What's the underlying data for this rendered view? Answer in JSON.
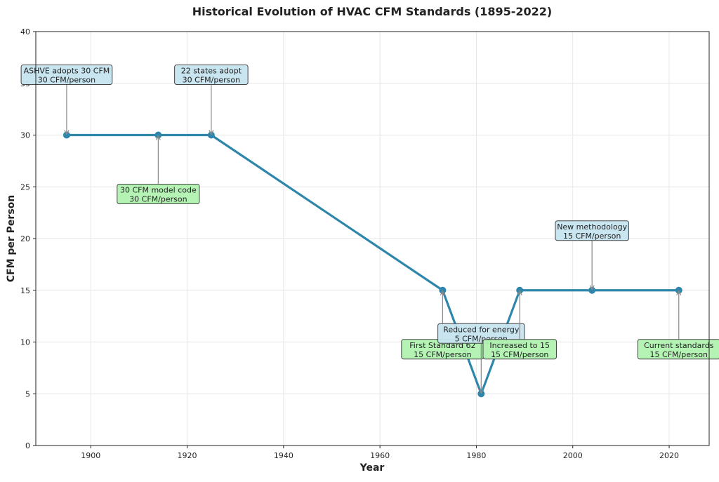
{
  "chart_data": {
    "type": "line",
    "title": "Historical Evolution of HVAC CFM Standards (1895-2022)",
    "xlabel": "Year",
    "ylabel": "CFM per Person",
    "xlim": [
      1888.6,
      2028.3
    ],
    "ylim": [
      0,
      40
    ],
    "xticks": [
      1900,
      1920,
      1940,
      1960,
      1980,
      2000,
      2020
    ],
    "yticks": [
      0,
      5,
      10,
      15,
      20,
      25,
      30,
      35,
      40
    ],
    "grid": true,
    "series": [
      {
        "name": "CFM per Person",
        "color": "#2e86ab",
        "x": [
          1895,
          1914,
          1925,
          1973,
          1981,
          1989,
          2004,
          2022
        ],
        "y": [
          30,
          30,
          30,
          15,
          5,
          15,
          15,
          15
        ]
      }
    ],
    "annotations": [
      {
        "x": 1895,
        "y": 30,
        "line1": "ASHVE adopts 30 CFM",
        "line2": "30 CFM/person",
        "box": "blue"
      },
      {
        "x": 1914,
        "y": 30,
        "line1": "30 CFM model code",
        "line2": "30 CFM/person",
        "box": "green"
      },
      {
        "x": 1925,
        "y": 30,
        "line1": "22 states adopt",
        "line2": "30 CFM/person",
        "box": "blue"
      },
      {
        "x": 1973,
        "y": 15,
        "line1": "First Standard 62",
        "line2": "15 CFM/person",
        "box": "green"
      },
      {
        "x": 1981,
        "y": 5,
        "line1": "Reduced for energy",
        "line2": "5 CFM/person",
        "box": "blue"
      },
      {
        "x": 1989,
        "y": 15,
        "line1": "Increased to 15",
        "line2": "15 CFM/person",
        "box": "green"
      },
      {
        "x": 2004,
        "y": 15,
        "line1": "New methodology",
        "line2": "15 CFM/person",
        "box": "blue"
      },
      {
        "x": 2022,
        "y": 15,
        "line1": "Current standards",
        "line2": "15 CFM/person",
        "box": "green"
      }
    ],
    "box_colors": {
      "blue": "#c6e4ef",
      "green": "#b0f2b0"
    }
  }
}
